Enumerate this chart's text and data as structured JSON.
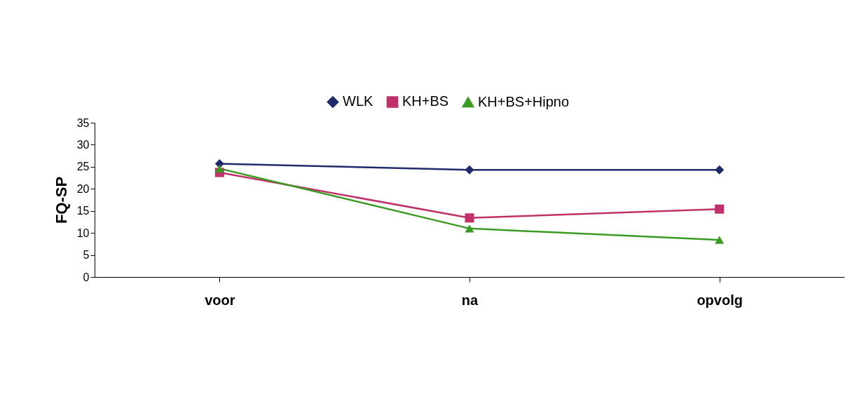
{
  "chart_data": {
    "type": "line",
    "ylabel": "FQ-SP",
    "categories": [
      "voor",
      "na",
      "opvolg"
    ],
    "series": [
      {
        "name": "WLK",
        "color": "#1f2a6b",
        "marker": "diamond",
        "values": [
          25.7,
          24.3,
          24.3
        ]
      },
      {
        "name": "KH+BS",
        "color": "#c0306a",
        "marker": "square",
        "values": [
          23.7,
          13.4,
          15.4
        ]
      },
      {
        "name": "KH+BS+Hipno",
        "color": "#3a9a22",
        "marker": "triangle",
        "values": [
          24.6,
          11.0,
          8.4
        ]
      }
    ],
    "ylim": [
      0,
      35
    ],
    "yticks": [
      0,
      5,
      10,
      15,
      20,
      25,
      30,
      35
    ],
    "grid": false,
    "legend": "top"
  }
}
